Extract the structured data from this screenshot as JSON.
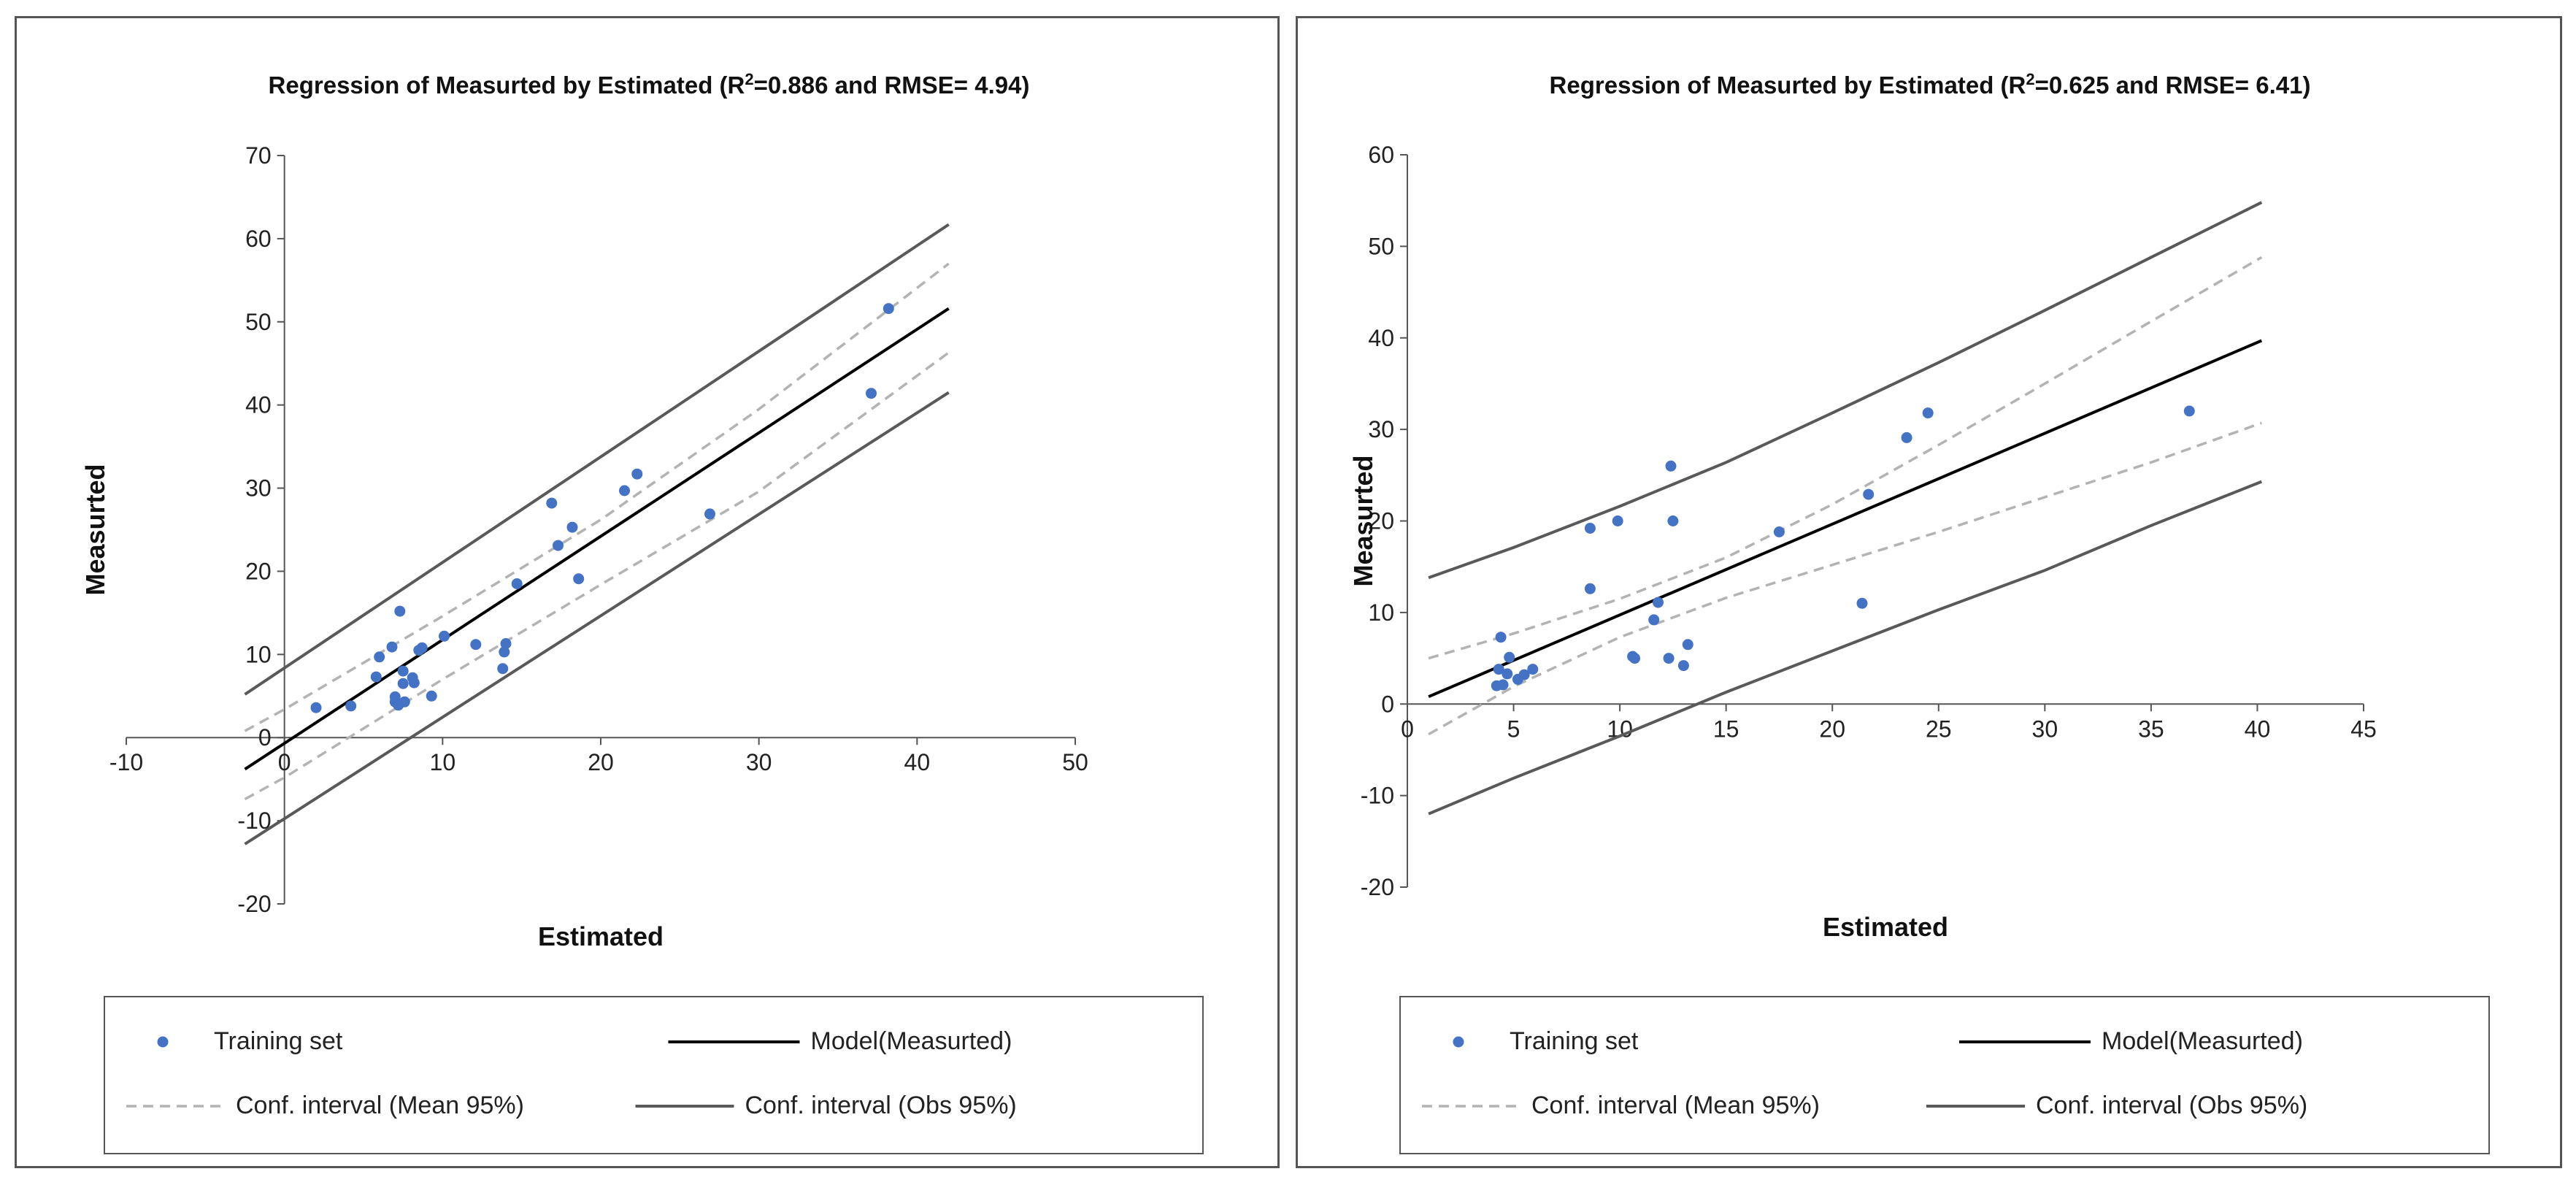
{
  "colors": {
    "points": "#4472c4",
    "model": "#000000",
    "mean_ci": "#b3b3b3",
    "obs_ci": "#595959",
    "axis": "#555555",
    "legend_border": "#555555"
  },
  "chart_data": [
    {
      "type": "scatter",
      "title": "Regression of Measurted by Estimated (R",
      "title_sup": "2",
      "title_end": "=0.886 and RMSE= 4.94)",
      "xlabel": "Estimated",
      "ylabel": "Measurted",
      "xlim": [
        -10,
        50
      ],
      "ylim": [
        -20,
        70
      ],
      "xticks": [
        "-10",
        "0",
        "10",
        "20",
        "30",
        "40",
        "50"
      ],
      "yticks": [
        "-20",
        "-10",
        "0",
        "10",
        "20",
        "30",
        "40",
        "50",
        "60",
        "70"
      ],
      "grid": false,
      "legend_position": "bottom",
      "legend": {
        "points": "Training set",
        "model": "Model(Measurted)",
        "mean_ci": "Conf. interval (Mean 95%)",
        "obs_ci": "Conf. interval (Obs 95%)"
      },
      "series": [
        {
          "kind": "points",
          "x": [
            2.0,
            4.2,
            5.8,
            6.0,
            6.8,
            7.0,
            7.0,
            7.2,
            7.3,
            7.5,
            7.5,
            7.6,
            8.1,
            8.2,
            8.5,
            8.7,
            9.3,
            10.1,
            12.1,
            13.8,
            13.9,
            14.0,
            14.7,
            16.9,
            17.3,
            18.2,
            18.6,
            21.5,
            22.3,
            26.9,
            37.1,
            38.2
          ],
          "y": [
            3.6,
            3.8,
            7.3,
            9.7,
            10.9,
            4.3,
            4.9,
            3.9,
            15.2,
            8.0,
            6.5,
            4.3,
            7.2,
            6.6,
            10.5,
            10.8,
            5.0,
            12.2,
            11.2,
            8.3,
            10.3,
            11.3,
            18.5,
            28.2,
            23.1,
            25.3,
            19.1,
            29.7,
            31.7,
            26.9,
            41.4,
            51.6
          ]
        },
        {
          "kind": "model",
          "x": [
            -2.5,
            42
          ],
          "y": [
            -3.8,
            51.6
          ]
        },
        {
          "kind": "mean_ci_upper",
          "x": [
            -2.5,
            0,
            10,
            20,
            30,
            42
          ],
          "y": [
            0.8,
            3.4,
            14.6,
            26.2,
            39.5,
            57.0
          ]
        },
        {
          "kind": "mean_ci_lower",
          "x": [
            -2.5,
            0,
            10,
            20,
            30,
            42
          ],
          "y": [
            -7.4,
            -4.8,
            7.0,
            18.4,
            29.6,
            46.3
          ]
        },
        {
          "kind": "obs_ci_upper",
          "x": [
            -2.5,
            42
          ],
          "y": [
            5.2,
            61.7
          ]
        },
        {
          "kind": "obs_ci_lower",
          "x": [
            -2.5,
            42
          ],
          "y": [
            -12.8,
            41.5
          ]
        }
      ]
    },
    {
      "type": "scatter",
      "title": "Regression of Measurted by Estimated (R",
      "title_sup": "2",
      "title_end": "=0.625 and RMSE= 6.41)",
      "xlabel": "Estimated",
      "ylabel": "Measurted",
      "xlim": [
        0,
        45
      ],
      "ylim": [
        -20,
        60
      ],
      "xticks": [
        "0",
        "5",
        "10",
        "15",
        "20",
        "25",
        "30",
        "35",
        "40",
        "45"
      ],
      "yticks": [
        "-20",
        "-10",
        "0",
        "10",
        "20",
        "30",
        "40",
        "50",
        "60"
      ],
      "grid": false,
      "legend_position": "bottom",
      "legend": {
        "points": "Training set",
        "model": "Model(Measurted)",
        "mean_ci": "Conf. interval (Mean 95%)",
        "obs_ci": "Conf. interval (Obs 95%)"
      },
      "series": [
        {
          "kind": "points",
          "x": [
            4.2,
            4.3,
            4.4,
            4.5,
            4.7,
            4.8,
            5.2,
            5.5,
            5.9,
            8.6,
            8.6,
            9.9,
            10.6,
            10.7,
            11.6,
            11.8,
            12.3,
            12.4,
            12.5,
            13.0,
            13.2,
            17.5,
            21.4,
            21.7,
            23.5,
            24.5,
            36.8
          ],
          "y": [
            2.0,
            3.8,
            7.3,
            2.1,
            3.3,
            5.1,
            2.7,
            3.2,
            3.8,
            19.2,
            12.6,
            20.0,
            5.2,
            5.0,
            9.2,
            11.1,
            5.0,
            26.0,
            20.0,
            4.2,
            6.5,
            18.8,
            11.0,
            22.9,
            29.1,
            31.8,
            32.0
          ]
        },
        {
          "kind": "model",
          "x": [
            1.0,
            40.2
          ],
          "y": [
            0.8,
            39.7
          ]
        },
        {
          "kind": "mean_ci_upper",
          "x": [
            1.0,
            5,
            10,
            15,
            20,
            25,
            30,
            35,
            40.2
          ],
          "y": [
            5.0,
            7.7,
            11.5,
            16.0,
            21.8,
            28.3,
            35.0,
            41.8,
            48.8
          ]
        },
        {
          "kind": "mean_ci_lower",
          "x": [
            1.0,
            5,
            10,
            15,
            20,
            25,
            30,
            35,
            40.2
          ],
          "y": [
            -3.3,
            1.9,
            7.3,
            11.6,
            15.2,
            18.8,
            22.6,
            26.4,
            30.7
          ]
        },
        {
          "kind": "obs_ci_upper",
          "x": [
            1.0,
            5,
            10,
            15,
            20,
            25,
            30,
            35,
            40.2
          ],
          "y": [
            13.8,
            17.1,
            21.6,
            26.4,
            31.8,
            37.3,
            43.0,
            48.8,
            54.8
          ]
        },
        {
          "kind": "obs_ci_lower",
          "x": [
            1.0,
            5,
            10,
            15,
            20,
            25,
            30,
            35,
            40.2
          ],
          "y": [
            -12.0,
            -8.1,
            -3.5,
            1.3,
            5.8,
            10.3,
            14.6,
            19.5,
            24.3
          ]
        }
      ]
    }
  ]
}
